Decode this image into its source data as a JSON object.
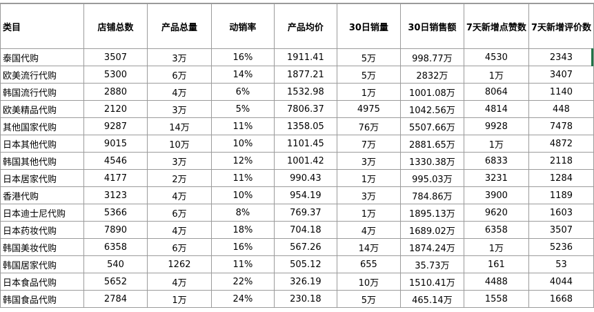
{
  "table": {
    "header": [
      "类目",
      "店铺总数",
      "产品总量",
      "动销率",
      "产品均价",
      "30日销量",
      "30日销售额",
      "7天新增点赞数",
      "7天新增评价数"
    ],
    "rows": [
      [
        "泰国代购",
        "3507",
        "3万",
        "16%",
        "1911.41",
        "5万",
        "998.77万",
        "4530",
        "2343"
      ],
      [
        "欧美流行代购",
        "5300",
        "6万",
        "14%",
        "1877.21",
        "5万",
        "2832万",
        "1万",
        "3407"
      ],
      [
        "韩国流行代购",
        "2880",
        "4万",
        "6%",
        "1532.98",
        "1万",
        "1001.08万",
        "8064",
        "1140"
      ],
      [
        "欧美精品代购",
        "2120",
        "3万",
        "5%",
        "7806.37",
        "4975",
        "1042.56万",
        "4814",
        "448"
      ],
      [
        "其他国家代购",
        "9287",
        "14万",
        "11%",
        "1358.05",
        "76万",
        "5507.66万",
        "9928",
        "7478"
      ],
      [
        "日本其他代购",
        "9015",
        "10万",
        "10%",
        "1101.45",
        "7万",
        "2881.65万",
        "1万",
        "4872"
      ],
      [
        "韩国其他代购",
        "4546",
        "3万",
        "12%",
        "1001.42",
        "3万",
        "1330.38万",
        "6833",
        "2118"
      ],
      [
        "日本居家代购",
        "4177",
        "2万",
        "11%",
        "990.43",
        "1万",
        "995.03万",
        "3231",
        "1284"
      ],
      [
        "香港代购",
        "3123",
        "4万",
        "10%",
        "954.19",
        "3万",
        "784.86万",
        "3900",
        "1189"
      ],
      [
        "日本迪士尼代购",
        "5366",
        "6万",
        "8%",
        "769.37",
        "1万",
        "1895.13万",
        "9620",
        "1603"
      ],
      [
        "日本药妆代购",
        "7890",
        "4万",
        "18%",
        "704.18",
        "4万",
        "1689.02万",
        "6358",
        "3507"
      ],
      [
        "韩国美妆代购",
        "6358",
        "6万",
        "16%",
        "567.26",
        "14万",
        "1874.24万",
        "1万",
        "5236"
      ],
      [
        "韩国居家代购",
        "540",
        "1262",
        "11%",
        "505.12",
        "655",
        "35.73万",
        "161",
        "53"
      ],
      [
        "日本食品代购",
        "5652",
        "4万",
        "22%",
        "326.19",
        "10万",
        "1510.41万",
        "4488",
        "4044"
      ],
      [
        "韩国食品代购",
        "2784",
        "1万",
        "24%",
        "230.18",
        "5万",
        "465.14万",
        "1558",
        "1668"
      ]
    ]
  }
}
